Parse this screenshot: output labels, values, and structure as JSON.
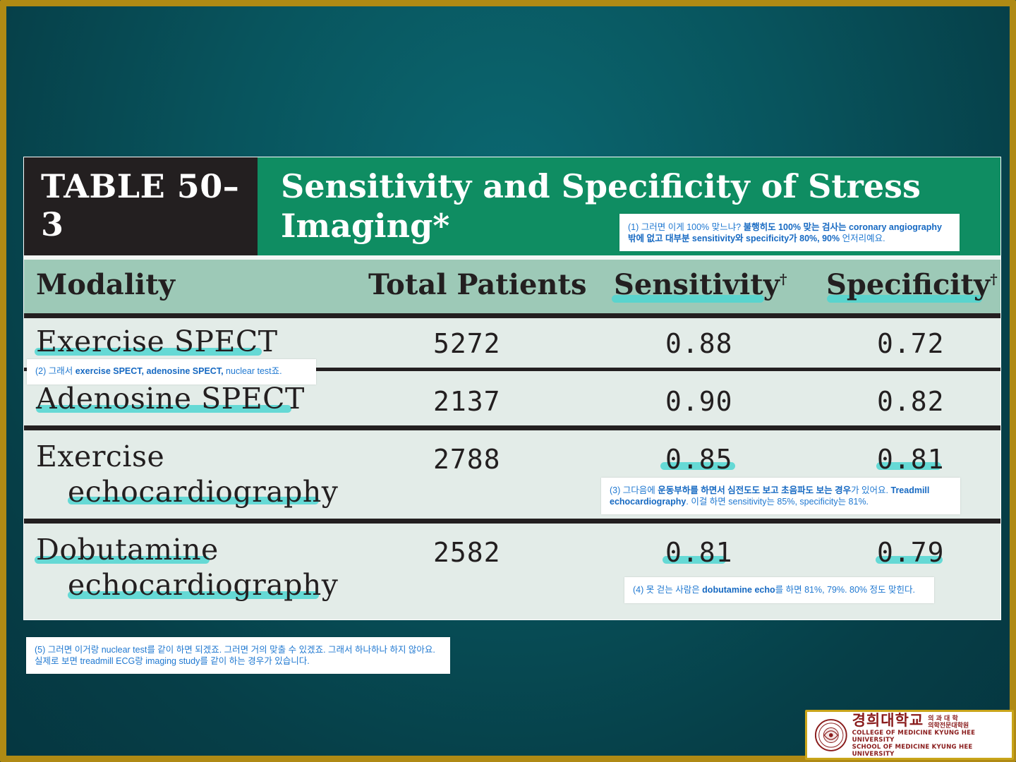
{
  "table": {
    "tag": "TABLE 50–3",
    "title_line1": "Sensitivity and Specificity of Stress",
    "title_line2": "Imaging*",
    "headers": {
      "modality": "Modality",
      "total": "Total Patients",
      "sensitivity": "Sensitivity",
      "specificity": "Specificity",
      "dagger": "†"
    },
    "rows": [
      {
        "modality_line1": "Exercise SPECT",
        "modality_line2": "",
        "total": "5272",
        "sensitivity": "0.88",
        "specificity": "0.72"
      },
      {
        "modality_line1": "Adenosine SPECT",
        "modality_line2": "",
        "total": "2137",
        "sensitivity": "0.90",
        "specificity": "0.82"
      },
      {
        "modality_line1": "Exercise",
        "modality_line2": "echocardiography",
        "total": "2788",
        "sensitivity": "0.85",
        "specificity": "0.81"
      },
      {
        "modality_line1": "Dobutamine",
        "modality_line2": "echocardiography",
        "total": "2582",
        "sensitivity": "0.81",
        "specificity": "0.79"
      }
    ]
  },
  "notes": {
    "n1": {
      "l1a": "(1) 그러면 이게 100% 맞느냐? ",
      "l1b": "불행히도 100% 맞는 검사는 coronary angiography",
      "l2a": "밖에 없고 대부분 sensitivity와 specificity가 80%, 90%",
      "l2b": " 언저리예요."
    },
    "n2": {
      "a": "(2) 그래서 ",
      "b": "exercise SPECT, adenosine SPECT,",
      "c": " nuclear test죠."
    },
    "n3": {
      "l1a": "(3) 그다음에 ",
      "l1b": "운동부하를 하면서 심전도도 보고 초음파도 보는 경우",
      "l1c": "가 있어요. ",
      "l1d": "Treadmill",
      "l2a": "echocardiography",
      "l2b": ". 이걸 하면 sensitivity는 85%, specificity는 81%."
    },
    "n4": {
      "a": "(4) 못 걷는 사람은 ",
      "b": "dobutamine echo",
      "c": "를 하면 81%, 79%. 80% 정도 맞힌다."
    },
    "n5": {
      "l1": "(5) 그러면 이거랑 nuclear test를 같이 하면 되겠죠. 그러면 거의 맞출 수 있겠죠. 그래서 하나하나 하지 않아요.",
      "l2": "실제로 보면 treadmill ECG랑 imaging study를 같이 하는 경우가 있습니다."
    }
  },
  "logo": {
    "korean": "경희대학교",
    "korean_small_1": "의 과 대 학",
    "korean_small_2": "의학전문대학원",
    "english_1": "COLLEGE OF MEDICINE KYUNG HEE UNIVERSITY",
    "english_2": "SCHOOL OF MEDICINE KYUNG HEE UNIVERSITY",
    "seal_text": "경희대학교 1949"
  },
  "colors": {
    "background": "#08545d",
    "frame": "#b08a14",
    "title_green": "#0f8d62",
    "header_green": "#9dc9b7",
    "highlight": "#4fd6d1",
    "note_text": "#1f78d1"
  }
}
